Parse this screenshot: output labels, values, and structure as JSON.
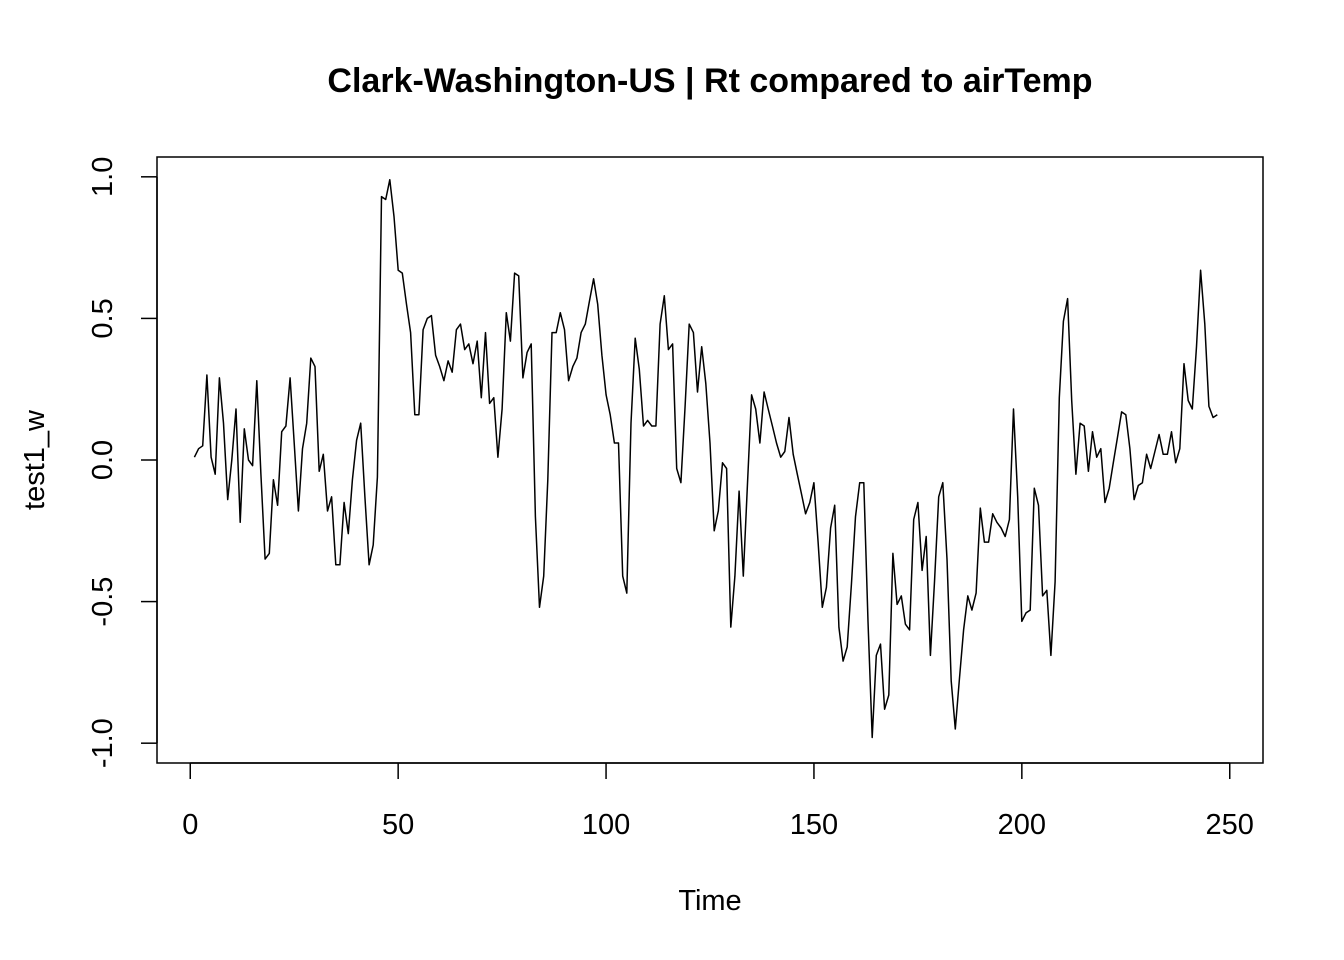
{
  "chart_data": {
    "type": "line",
    "title": "Clark-Washington-US | Rt compared to airTemp",
    "xlabel": "Time",
    "ylabel": "test1_w",
    "xlim": [
      -8,
      258
    ],
    "ylim": [
      -1.07,
      1.07
    ],
    "x_ticks": [
      0,
      50,
      100,
      150,
      200,
      250
    ],
    "y_ticks": [
      -1.0,
      -0.5,
      0.0,
      0.5,
      1.0
    ],
    "x_tick_labels": [
      "0",
      "50",
      "100",
      "150",
      "200",
      "250"
    ],
    "y_tick_labels": [
      "-1.0",
      "-0.5",
      "0.0",
      "0.5",
      "1.0"
    ],
    "grid": false,
    "series": [
      {
        "x_start": 1,
        "values": [
          0.01,
          0.04,
          0.05,
          0.3,
          0.01,
          -0.05,
          0.29,
          0.13,
          -0.14,
          0.0,
          0.18,
          -0.22,
          0.11,
          0.0,
          -0.02,
          0.28,
          -0.05,
          -0.35,
          -0.33,
          -0.07,
          -0.16,
          0.1,
          0.12,
          0.29,
          0.06,
          -0.18,
          0.04,
          0.13,
          0.36,
          0.33,
          -0.04,
          0.02,
          -0.18,
          -0.13,
          -0.37,
          -0.37,
          -0.15,
          -0.26,
          -0.07,
          0.07,
          0.13,
          -0.13,
          -0.37,
          -0.3,
          -0.06,
          0.93,
          0.92,
          0.99,
          0.86,
          0.67,
          0.66,
          0.55,
          0.45,
          0.16,
          0.16,
          0.46,
          0.5,
          0.51,
          0.37,
          0.33,
          0.28,
          0.35,
          0.31,
          0.46,
          0.48,
          0.39,
          0.41,
          0.34,
          0.42,
          0.22,
          0.45,
          0.2,
          0.22,
          0.01,
          0.18,
          0.52,
          0.42,
          0.66,
          0.65,
          0.29,
          0.38,
          0.41,
          -0.2,
          -0.52,
          -0.41,
          -0.07,
          0.45,
          0.45,
          0.52,
          0.46,
          0.28,
          0.33,
          0.36,
          0.45,
          0.48,
          0.56,
          0.64,
          0.55,
          0.37,
          0.23,
          0.16,
          0.06,
          0.06,
          -0.41,
          -0.47,
          0.13,
          0.43,
          0.32,
          0.12,
          0.14,
          0.12,
          0.12,
          0.48,
          0.58,
          0.39,
          0.41,
          -0.03,
          -0.08,
          0.19,
          0.48,
          0.45,
          0.24,
          0.4,
          0.27,
          0.06,
          -0.25,
          -0.18,
          -0.01,
          -0.03,
          -0.59,
          -0.41,
          -0.11,
          -0.41,
          -0.09,
          0.23,
          0.18,
          0.06,
          0.24,
          0.18,
          0.12,
          0.06,
          0.01,
          0.03,
          0.15,
          0.02,
          -0.05,
          -0.12,
          -0.19,
          -0.15,
          -0.08,
          -0.29,
          -0.52,
          -0.45,
          -0.24,
          -0.16,
          -0.59,
          -0.71,
          -0.66,
          -0.44,
          -0.2,
          -0.08,
          -0.08,
          -0.57,
          -0.98,
          -0.69,
          -0.65,
          -0.88,
          -0.83,
          -0.33,
          -0.51,
          -0.48,
          -0.58,
          -0.6,
          -0.21,
          -0.15,
          -0.39,
          -0.27,
          -0.69,
          -0.43,
          -0.13,
          -0.08,
          -0.35,
          -0.78,
          -0.95,
          -0.77,
          -0.6,
          -0.48,
          -0.53,
          -0.47,
          -0.17,
          -0.29,
          -0.29,
          -0.19,
          -0.22,
          -0.24,
          -0.27,
          -0.21,
          0.18,
          -0.13,
          -0.57,
          -0.54,
          -0.53,
          -0.1,
          -0.16,
          -0.48,
          -0.46,
          -0.69,
          -0.43,
          0.22,
          0.49,
          0.57,
          0.21,
          -0.05,
          0.13,
          0.12,
          -0.04,
          0.1,
          0.01,
          0.04,
          -0.15,
          -0.1,
          -0.01,
          0.08,
          0.17,
          0.16,
          0.04,
          -0.14,
          -0.09,
          -0.08,
          0.02,
          -0.03,
          0.03,
          0.09,
          0.02,
          0.02,
          0.1,
          -0.01,
          0.04,
          0.34,
          0.21,
          0.18,
          0.4,
          0.67,
          0.48,
          0.19,
          0.15,
          0.16
        ],
        "color": "#000000"
      }
    ]
  }
}
